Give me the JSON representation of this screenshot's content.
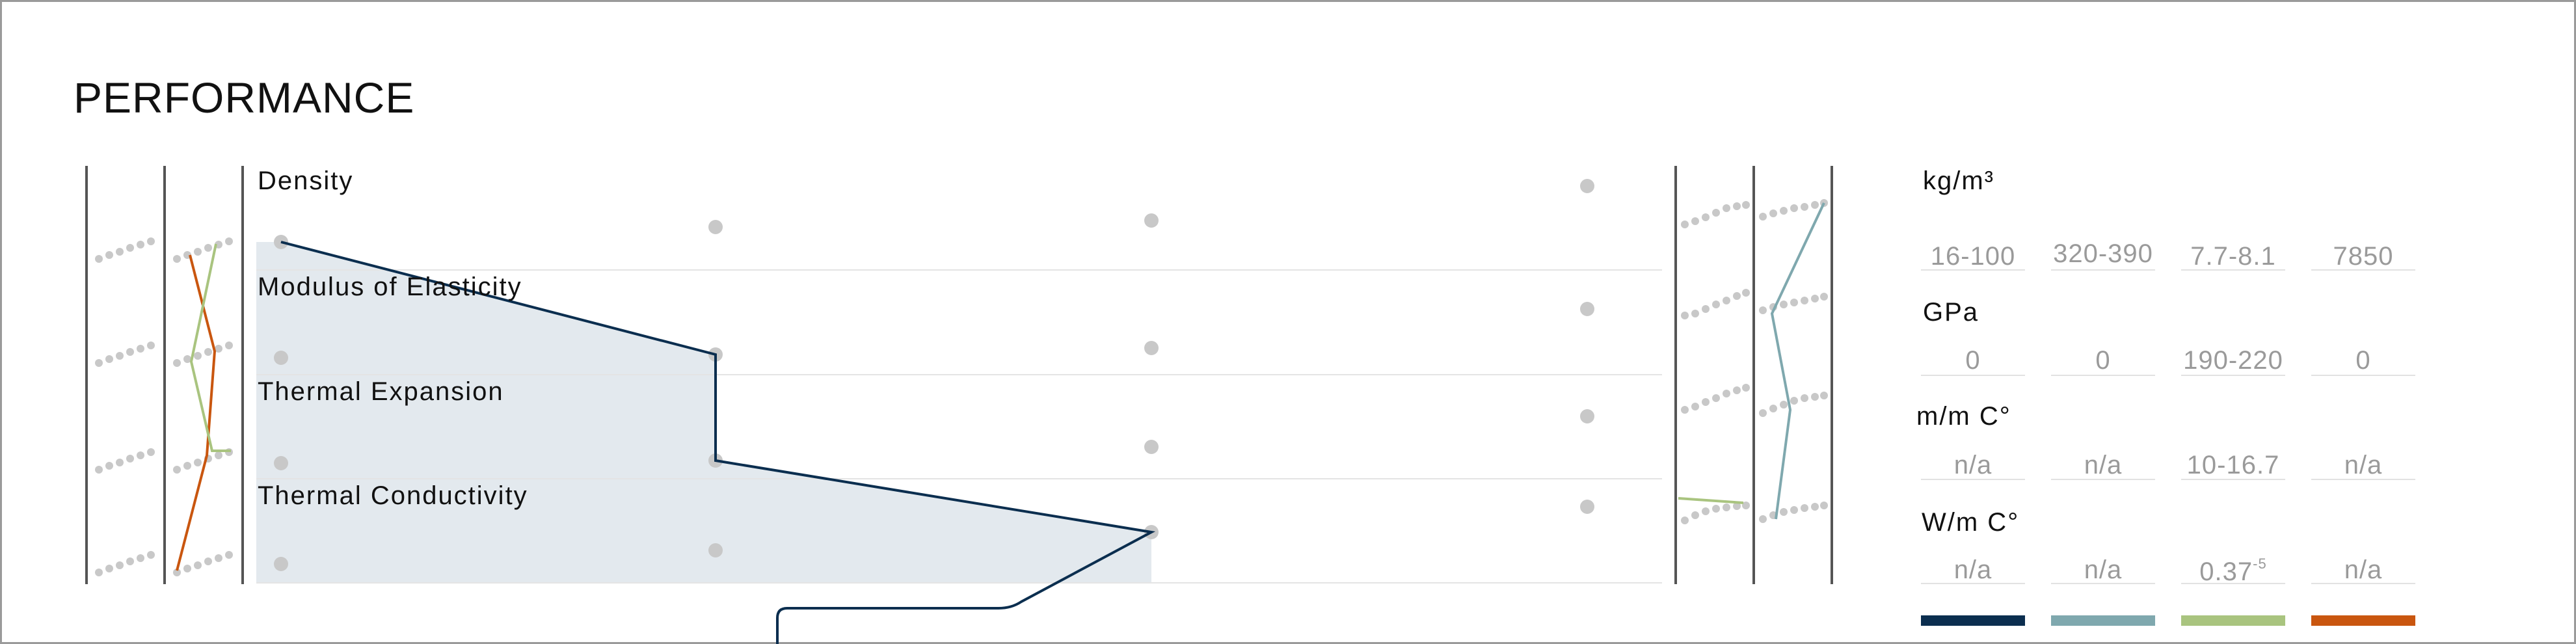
{
  "title": "PERFORMANCE",
  "properties": [
    {
      "label": "Density",
      "unit": "kg/m³",
      "values": [
        "16-100",
        "320-390",
        "7.7-8.1",
        "7850"
      ],
      "sup": [
        "",
        "",
        "",
        ""
      ]
    },
    {
      "label": "Modulus of Elasticity",
      "unit": "GPa",
      "values": [
        "0",
        "0",
        "190-220",
        "0"
      ],
      "sup": [
        "",
        "",
        "",
        ""
      ]
    },
    {
      "label": "Thermal Expansion",
      "unit": "m/m C°",
      "values": [
        "n/a",
        "n/a",
        "10-16.7",
        "n/a"
      ],
      "sup": [
        "",
        "",
        "",
        ""
      ]
    },
    {
      "label": "Thermal Conductivity",
      "unit": "W/m C°",
      "values": [
        "n/a",
        "n/a",
        "0.37",
        "n/a"
      ],
      "sup": [
        "",
        "",
        "-5",
        ""
      ]
    }
  ],
  "materials": [
    {
      "color": "#0b2e4f"
    },
    {
      "color": "#7fa8ae"
    },
    {
      "color": "#a9c47f"
    },
    {
      "color": "#c9560f"
    }
  ]
}
